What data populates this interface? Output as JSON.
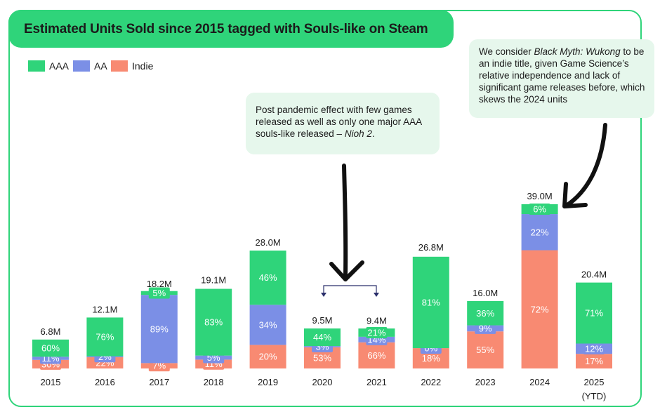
{
  "title": "Estimated Units Sold since 2015 tagged with Souls-like on Steam",
  "legend": {
    "aaa": "AAA",
    "aa": "AA",
    "indie": "Indie"
  },
  "colors": {
    "aaa": "#2fd47a",
    "aa": "#7b8fe6",
    "indie": "#f88a72",
    "accent": "#2fd47a",
    "note_bg": "#e6f7ec"
  },
  "annotations": {
    "pandemic": {
      "text_before": "Post pandemic effect with few games released as well as only one major AAA souls-like released – ",
      "italic": "Nioh 2",
      "text_after": "."
    },
    "wukong": {
      "text_before": "We consider ",
      "italic": "Black Myth: Wukong",
      "text_after": " to be an indie title, given Game Science’s relative independence and lack of significant game releases before, which skews the 2024 units"
    }
  },
  "chart_data": {
    "type": "bar",
    "stacked": true,
    "unit": "M",
    "categories": [
      "2015",
      "2016",
      "2017",
      "2018",
      "2019",
      "2020",
      "2021",
      "2022",
      "2023",
      "2024",
      "2025"
    ],
    "category_sublabels": [
      "",
      "",
      "",
      "",
      "",
      "",
      "",
      "",
      "",
      "",
      "(YTD)"
    ],
    "totals": [
      6.8,
      12.1,
      18.2,
      19.1,
      28.0,
      9.5,
      9.4,
      26.8,
      16.0,
      39.0,
      20.4
    ],
    "total_labels": [
      "6.8M",
      "12.1M",
      "18.2M",
      "19.1M",
      "28.0M",
      "9.5M",
      "9.4M",
      "26.8M",
      "16.0M",
      "39.0M",
      "20.4M"
    ],
    "series": [
      {
        "name": "Indie",
        "key": "indie",
        "percent": [
          30,
          22,
          7,
          11,
          20,
          53,
          66,
          18,
          55,
          72,
          17
        ]
      },
      {
        "name": "AA",
        "key": "aa",
        "percent": [
          11,
          2,
          89,
          5,
          34,
          3,
          14,
          0,
          9,
          22,
          12
        ]
      },
      {
        "name": "AAA",
        "key": "aaa",
        "percent": [
          60,
          76,
          5,
          83,
          46,
          44,
          21,
          81,
          36,
          6,
          71
        ]
      }
    ],
    "legend_position": "top-left",
    "grid": false
  }
}
